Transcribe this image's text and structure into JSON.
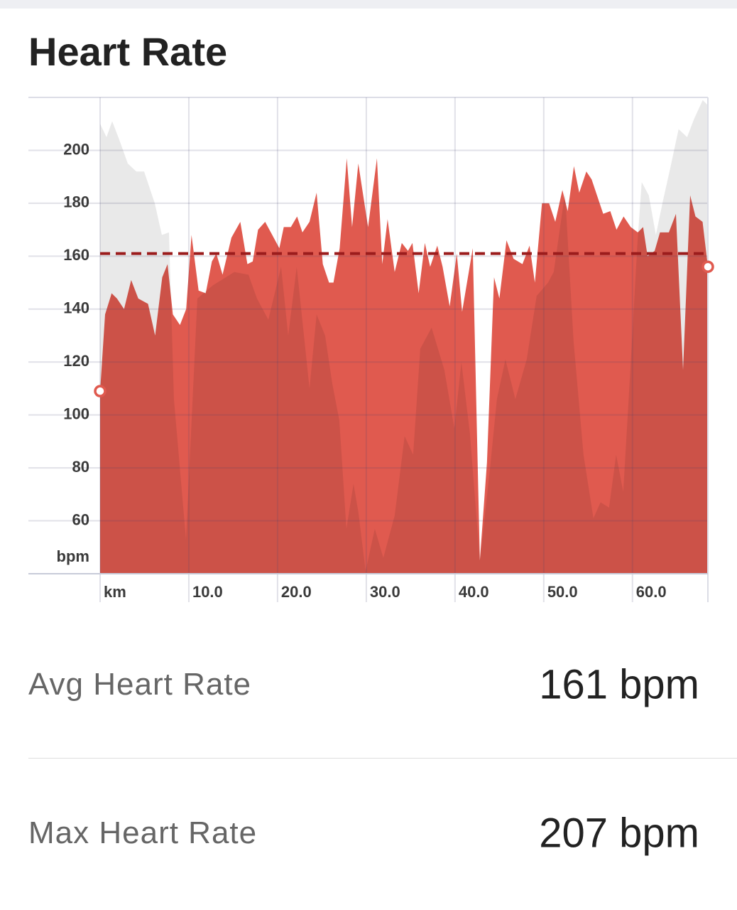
{
  "title": "Heart Rate",
  "chart_data": {
    "type": "area",
    "y_label": "bpm",
    "xlim": [
      0,
      68.5
    ],
    "ylim": [
      40,
      220
    ],
    "yticks": [
      60,
      80,
      100,
      120,
      140,
      160,
      180,
      200
    ],
    "xticks": [
      {
        "value": 0,
        "label": "km"
      },
      {
        "value": 10,
        "label": "10.0"
      },
      {
        "value": 20,
        "label": "20.0"
      },
      {
        "value": 30,
        "label": "30.0"
      },
      {
        "value": 40,
        "label": "40.0"
      },
      {
        "value": 50,
        "label": "50.0"
      },
      {
        "value": 60,
        "label": "60.0"
      }
    ],
    "grid": true,
    "avg_line": 161,
    "avg_color": "#9b1c1c",
    "series": [
      {
        "color": "#e05a4f",
        "x": [
          0,
          0.56,
          1.3,
          1.9,
          2.7,
          3.5,
          4.3,
          5.4,
          6.2,
          7,
          7.6,
          8.2,
          9,
          9.7,
          10.3,
          11.1,
          11.9,
          12.6,
          13.1,
          13.8,
          14.8,
          15.8,
          16.6,
          17.2,
          17.8,
          18.6,
          19.4,
          20.2,
          20.7,
          21.5,
          22.2,
          22.8,
          23.6,
          24.4,
          25.1,
          25.8,
          26.3,
          27,
          27.8,
          28.4,
          29.1,
          30.2,
          31.2,
          31.8,
          32.4,
          33.2,
          34,
          34.7,
          35.2,
          35.9,
          36.6,
          37.2,
          38,
          38.6,
          39.4,
          40.2,
          40.8,
          42,
          42.8,
          43.6,
          44.4,
          45,
          45.8,
          46.6,
          47.6,
          48.4,
          49,
          49.8,
          50.6,
          51.3,
          52.1,
          52.7,
          53.4,
          54,
          54.8,
          55.4,
          56.7,
          57.5,
          58.2,
          59,
          59.8,
          60.6,
          61.2,
          61.7,
          62.5,
          63.1,
          64.1,
          64.9,
          65.7,
          66.5,
          67.1,
          67.9,
          68.5
        ],
        "values": [
          109,
          138,
          146,
          144,
          140,
          151,
          144,
          142,
          130,
          152,
          157,
          138,
          134,
          140,
          168,
          147,
          146,
          158,
          161,
          153,
          167,
          173,
          157,
          158,
          170,
          173,
          168,
          163,
          171,
          171,
          175,
          169,
          173,
          184,
          157,
          150,
          150,
          163,
          197,
          171,
          195,
          171,
          197,
          157,
          174,
          154,
          165,
          162,
          165,
          146,
          165,
          156,
          164,
          156,
          141,
          161,
          139,
          163,
          45,
          82,
          152,
          144,
          166,
          159,
          157,
          164,
          150,
          180,
          180,
          173,
          185,
          177,
          194,
          184,
          192,
          189,
          176,
          177,
          170,
          175,
          171,
          169,
          171,
          160,
          162,
          169,
          169,
          176,
          117,
          183,
          175,
          173,
          156
        ]
      },
      {
        "color": "#000000",
        "x": [
          0,
          0.72,
          1.36,
          2.16,
          3.12,
          4.08,
          4.96,
          6.16,
          6.96,
          7.76,
          8.32,
          9.68,
          10.96,
          12.72,
          14.16,
          15.12,
          16.72,
          17.68,
          18.96,
          20.4,
          21.2,
          22.16,
          23.6,
          24.4,
          25.36,
          26.16,
          26.96,
          27.76,
          28.56,
          29.12,
          29.92,
          30.96,
          31.92,
          33.2,
          34.32,
          35.28,
          36.08,
          37.36,
          38.8,
          39.92,
          40.72,
          41.68,
          42.8,
          43.92,
          44.72,
          45.68,
          46.8,
          48.08,
          49.2,
          50.48,
          51.12,
          52.4,
          53.36,
          54.48,
          55.6,
          56.4,
          57.36,
          58.16,
          58.96,
          59.76,
          60.56,
          61.04,
          61.84,
          62.64,
          63.44,
          64.24,
          65.2,
          66.16,
          66.96,
          67.92,
          68.5
        ],
        "values": [
          210,
          205,
          211,
          204,
          195,
          192,
          192,
          180,
          168,
          169,
          106,
          53,
          144,
          149,
          152,
          154,
          153,
          144,
          136,
          156,
          130,
          156,
          110,
          138,
          130,
          112,
          98,
          57,
          74,
          63,
          41,
          57,
          46,
          62,
          92,
          85,
          125,
          133,
          117,
          95,
          120,
          93,
          45,
          79,
          106,
          121,
          106,
          121,
          145,
          150,
          154,
          184,
          128,
          85,
          61,
          67,
          65,
          85,
          71,
          117,
          165,
          188,
          183,
          168,
          181,
          193,
          208,
          205,
          212,
          219,
          217
        ]
      }
    ]
  },
  "stats": [
    {
      "label": "Avg Heart Rate",
      "value": "161 bpm"
    },
    {
      "label": "Max Heart Rate",
      "value": "207 bpm"
    }
  ]
}
